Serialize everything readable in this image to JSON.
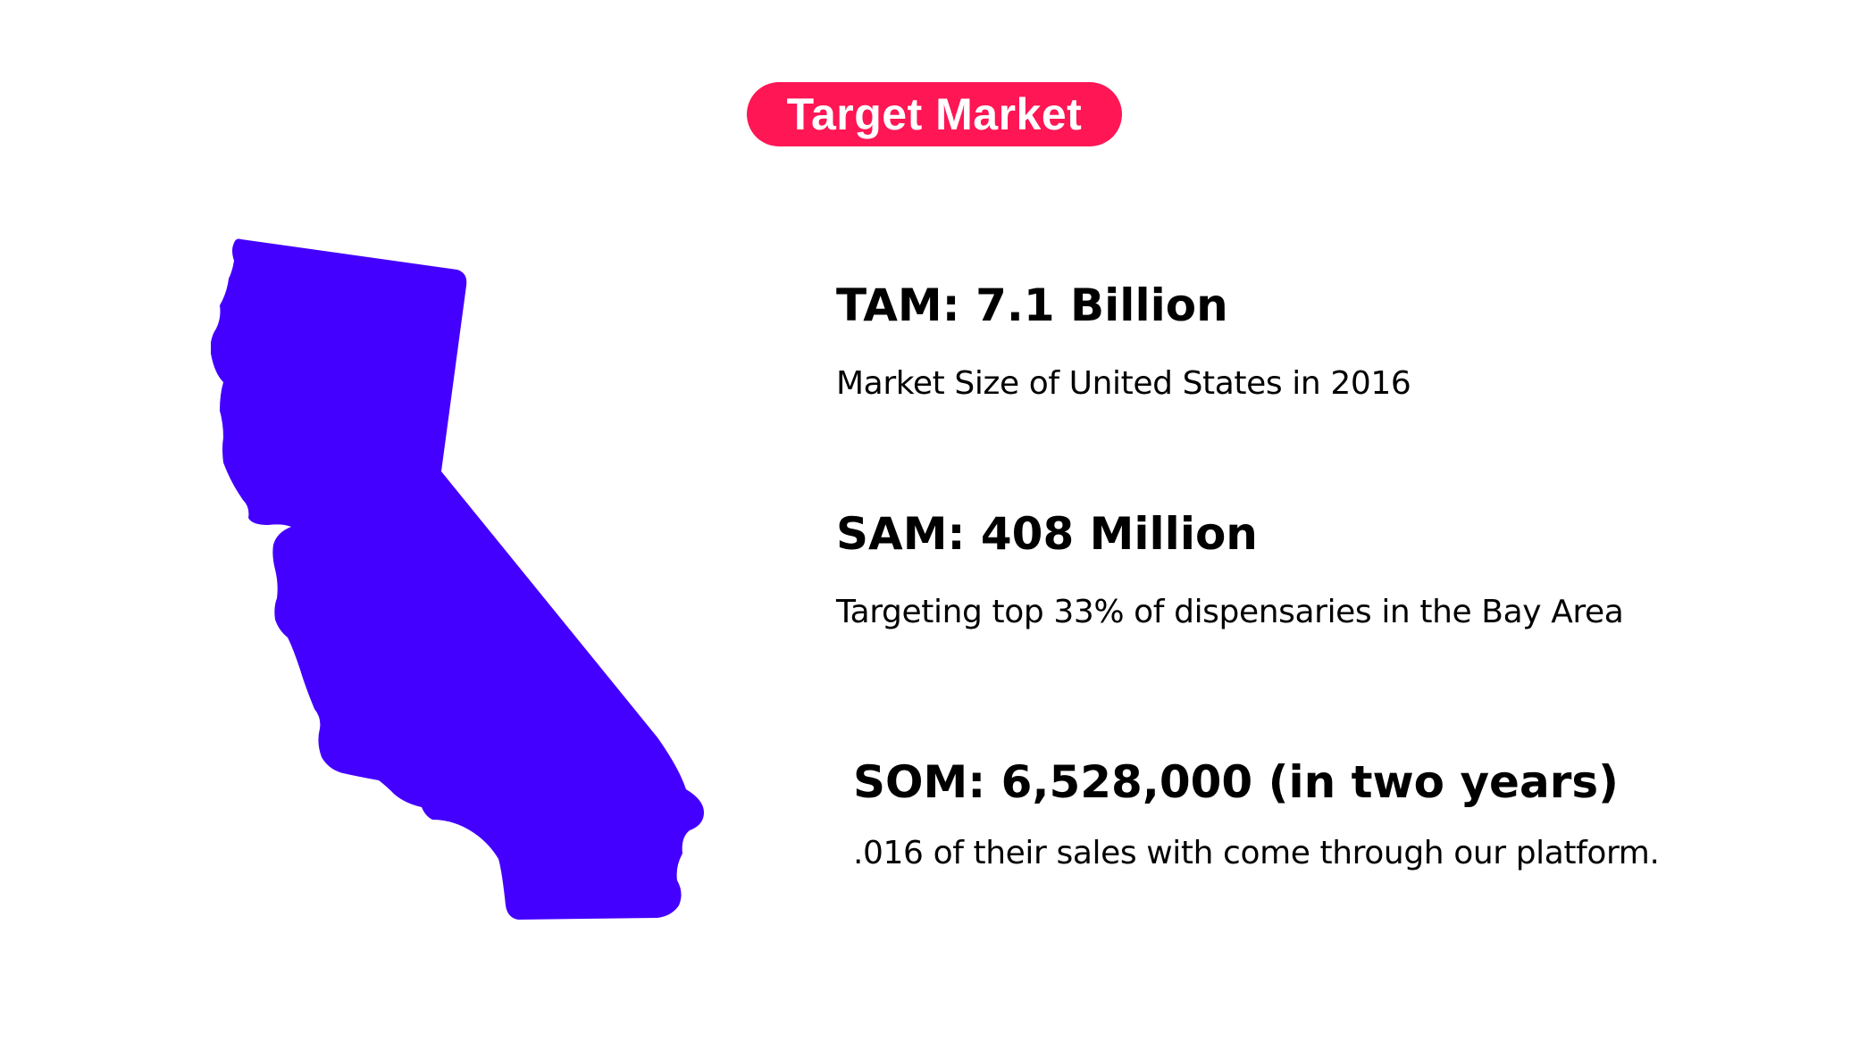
{
  "header": {
    "title": "Target Market",
    "accent_color": "#ff1654"
  },
  "map": {
    "icon": "california-map-icon",
    "fill_color": "#4400ff"
  },
  "metrics": [
    {
      "title": "TAM: 7.1 Billion",
      "description": "Market Size of United States in 2016"
    },
    {
      "title": "SAM: 408 Million",
      "description": "Targeting top 33% of dispensaries in the Bay Area"
    },
    {
      "title": "SOM: 6,528,000 (in two years)",
      "description": ".016 of their sales with come through our platform."
    }
  ]
}
